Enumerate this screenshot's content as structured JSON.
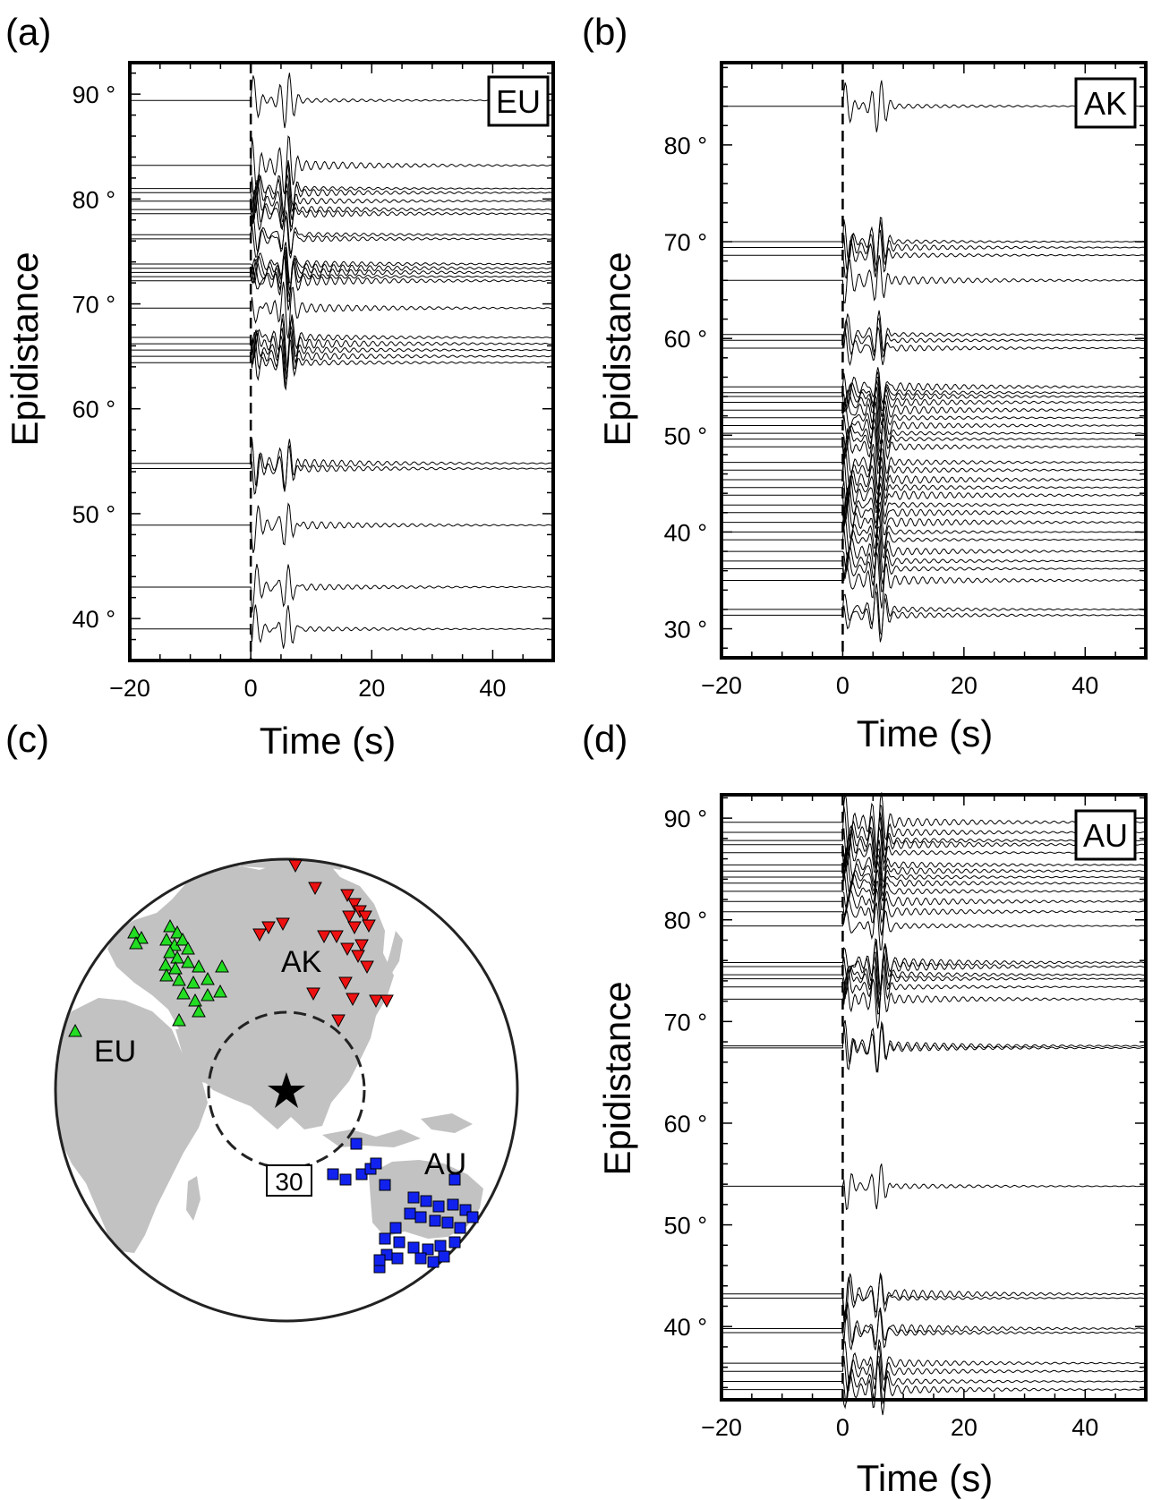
{
  "panels": {
    "a": {
      "letter": "(a)",
      "tag": "EU",
      "ylabel": "Epidistance",
      "xlabel": "Time (s)"
    },
    "b": {
      "letter": "(b)",
      "tag": "AK",
      "ylabel": "Epidistance",
      "xlabel": "Time (s)"
    },
    "c": {
      "letter": "(c)"
    },
    "d": {
      "letter": "(d)",
      "tag": "AU",
      "ylabel": "Epidistance",
      "xlabel": "Time (s)"
    }
  },
  "map": {
    "labels": {
      "eu": "EU",
      "ak": "AK",
      "au": "AU"
    },
    "circle_label": "30",
    "colors": {
      "eu": "#22dd22",
      "ak": "#ee1111",
      "au": "#1122ee",
      "land": "#c2c2c2"
    }
  },
  "chart_data": [
    {
      "id": "a",
      "type": "line",
      "title": "EU",
      "xlabel": "Time (s)",
      "ylabel": "Epidistance",
      "xlim": [
        -20,
        50
      ],
      "ylim": [
        36,
        93
      ],
      "xticks": [
        -20,
        0,
        20,
        40
      ],
      "xtick_labels": [
        "−20",
        "0",
        "20",
        "40"
      ],
      "yticks": [
        40,
        50,
        60,
        70,
        80,
        90
      ],
      "ytick_labels": [
        "40 °",
        "50 °",
        "60 °",
        "70 °",
        "80 °",
        "90 °"
      ],
      "reference_line_x": 0,
      "trace_distances": [
        89.4,
        83.2,
        81.0,
        80.6,
        79.8,
        79.0,
        78.6,
        76.6,
        76.2,
        73.8,
        73.4,
        73.0,
        72.6,
        72.2,
        69.6,
        66.8,
        66.2,
        65.6,
        65.0,
        64.4,
        54.8,
        54.3,
        48.9,
        43.0,
        39.0
      ]
    },
    {
      "id": "b",
      "type": "line",
      "title": "AK",
      "xlabel": "Time (s)",
      "ylabel": "Epidistance",
      "xlim": [
        -20,
        50
      ],
      "ylim": [
        27,
        88.5
      ],
      "xticks": [
        -20,
        0,
        20,
        40
      ],
      "xtick_labels": [
        "−20",
        "0",
        "20",
        "40"
      ],
      "yticks": [
        30,
        40,
        50,
        60,
        70,
        80
      ],
      "ytick_labels": [
        "30 °",
        "40 °",
        "50 °",
        "60 °",
        "70 °",
        "80 °"
      ],
      "reference_line_x": 0,
      "trace_distances": [
        84.0,
        70.0,
        69.4,
        68.6,
        66.0,
        60.4,
        59.8,
        59.0,
        55.0,
        54.4,
        54.0,
        53.4,
        52.6,
        51.8,
        51.0,
        50.2,
        49.6,
        48.8,
        47.2,
        46.4,
        45.4,
        44.6,
        43.8,
        42.8,
        42.0,
        41.0,
        40.0,
        39.2,
        38.0,
        37.0,
        36.2,
        35.0,
        32.0,
        31.4
      ]
    },
    {
      "id": "d",
      "type": "line",
      "title": "AU",
      "xlabel": "Time (s)",
      "ylabel": "Epidistance",
      "xlim": [
        -20,
        50
      ],
      "ylim": [
        32.8,
        92.3
      ],
      "xticks": [
        -20,
        0,
        20,
        40
      ],
      "xtick_labels": [
        "−20",
        "0",
        "20",
        "40"
      ],
      "yticks": [
        40,
        50,
        60,
        70,
        80,
        90
      ],
      "ytick_labels": [
        "40 °",
        "50 °",
        "60 °",
        "70 °",
        "80 °",
        "90 °"
      ],
      "reference_line_x": 0,
      "trace_distances": [
        89.6,
        88.6,
        87.8,
        87.4,
        86.6,
        85.4,
        84.8,
        84.2,
        83.6,
        82.8,
        81.8,
        80.8,
        79.4,
        75.8,
        75.4,
        74.6,
        74.2,
        73.4,
        72.2,
        67.6,
        67.4,
        53.8,
        43.2,
        42.8,
        39.8,
        39.4,
        36.4,
        35.6,
        34.6,
        33.8
      ]
    }
  ]
}
